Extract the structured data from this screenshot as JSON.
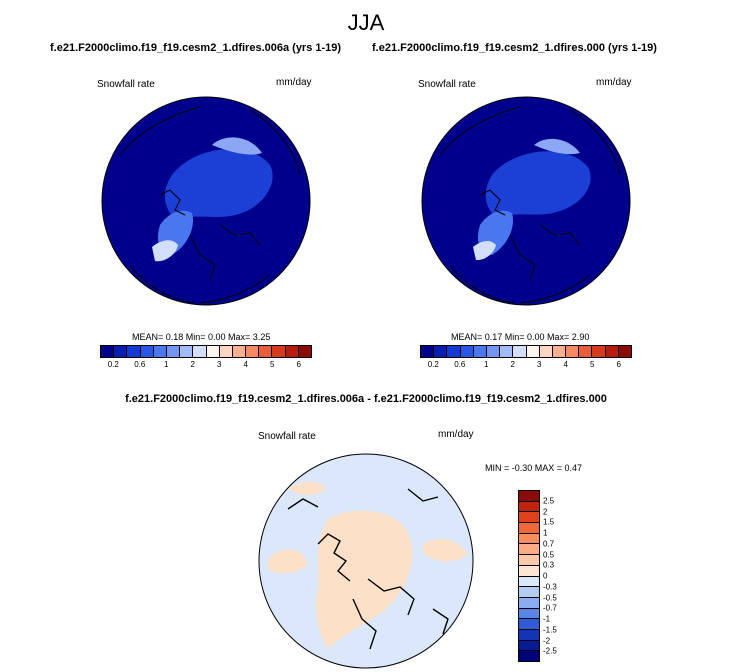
{
  "figure": {
    "season": "JJA"
  },
  "panel_a": {
    "title": "f.e21.F2000climo.f19_f19.cesm2_1.dfires.006a (yrs 1-19)",
    "left_label": "Snowfall rate",
    "right_label": "mm/day",
    "stats": "MEAN=  0.18  Min=  0.00  Max=  3.25"
  },
  "panel_b": {
    "title": "f.e21.F2000climo.f19_f19.cesm2_1.dfires.000 (yrs 1-19)",
    "left_label": "Snowfall rate",
    "right_label": "mm/day",
    "stats": "MEAN=  0.17  Min=  0.00  Max=  2.90"
  },
  "panel_diff": {
    "title": "f.e21.F2000climo.f19_f19.cesm2_1.dfires.006a - f.e21.F2000climo.f19_f19.cesm2_1.dfires.000",
    "left_label": "Snowfall rate",
    "right_label": "mm/day",
    "stats": "MIN =  -0.30 MAX =   0.47"
  },
  "colors": {
    "ocean": "#00008c",
    "land_light": "#1c3fd6",
    "ice_edge": "#8ca8f5",
    "coast": "#000000",
    "diff_positive": "#fde0c8",
    "diff_negative": "#dbe8fb"
  },
  "chart_data": [
    {
      "type": "heatmap",
      "projection": "north polar stereographic",
      "variable": "Snowfall rate",
      "units": "mm/day",
      "mean": 0.18,
      "min": 0.0,
      "max": 3.25,
      "colorbar": {
        "orientation": "horizontal",
        "tick_labels": [
          "0.2",
          "0.6",
          "1",
          "2",
          "3",
          "4",
          "5",
          "6"
        ],
        "colors": [
          "#00008c",
          "#0a1fb0",
          "#1438d2",
          "#2856e6",
          "#4a76ee",
          "#7396f4",
          "#a3bcf8",
          "#d2defb",
          "#fff4ec",
          "#fdd6bd",
          "#fbb18f",
          "#f58a63",
          "#ea5d3a",
          "#d8381c",
          "#b71d0c",
          "#8a0a05"
        ]
      }
    },
    {
      "type": "heatmap",
      "projection": "north polar stereographic",
      "variable": "Snowfall rate",
      "units": "mm/day",
      "mean": 0.17,
      "min": 0.0,
      "max": 2.9,
      "colorbar": {
        "orientation": "horizontal",
        "tick_labels": [
          "0.2",
          "0.6",
          "1",
          "2",
          "3",
          "4",
          "5",
          "6"
        ],
        "colors": [
          "#00008c",
          "#0a1fb0",
          "#1438d2",
          "#2856e6",
          "#4a76ee",
          "#7396f4",
          "#a3bcf8",
          "#d2defb",
          "#fff4ec",
          "#fdd6bd",
          "#fbb18f",
          "#f58a63",
          "#ea5d3a",
          "#d8381c",
          "#b71d0c",
          "#8a0a05"
        ]
      }
    },
    {
      "type": "heatmap",
      "projection": "north polar stereographic",
      "variable": "Snowfall rate",
      "units": "mm/day",
      "min": -0.3,
      "max": 0.47,
      "colorbar": {
        "orientation": "vertical",
        "tick_labels": [
          "2.5",
          "2",
          "1.5",
          "1",
          "0.7",
          "0.5",
          "0.3",
          "0",
          "-0.3",
          "-0.5",
          "-0.7",
          "-1",
          "-1.5",
          "-2",
          "-2.5"
        ],
        "colors": [
          "#8a0a05",
          "#c0240f",
          "#e0421e",
          "#f3683b",
          "#f98d60",
          "#fbac84",
          "#fdc9a8",
          "#fde6d2",
          "#dbe8fb",
          "#b4cdf5",
          "#8aadf0",
          "#5c86e6",
          "#2f5bd8",
          "#1434b6",
          "#061c92",
          "#00007a"
        ]
      }
    }
  ]
}
